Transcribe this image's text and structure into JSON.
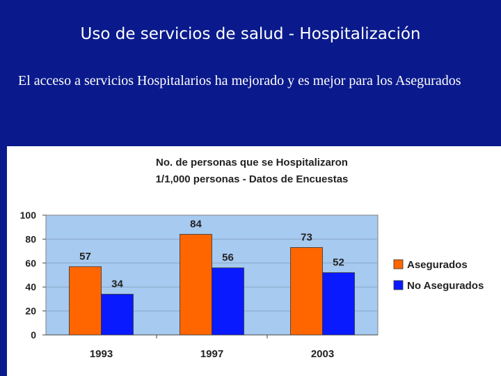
{
  "slide": {
    "title": "Uso de servicios de salud - Hospitalización",
    "body": "El acceso a servicios Hospitalarios ha mejorado y es mejor para los Asegurados"
  },
  "chart_data": {
    "type": "bar",
    "title_line1": "No. de personas que se Hospitalizaron",
    "title_line2": "1/1,000 personas - Datos de Encuestas",
    "categories": [
      "1993",
      "1997",
      "2003"
    ],
    "series": [
      {
        "name": "Asegurados",
        "values": [
          57,
          84,
          73
        ],
        "color": "#ff6600"
      },
      {
        "name": "No Asegurados",
        "values": [
          34,
          56,
          52
        ],
        "color": "#0a1aff"
      }
    ],
    "ylim": [
      0,
      100
    ],
    "yticks": [
      0,
      20,
      40,
      60,
      80,
      100
    ],
    "plot_background": "#a6caf0",
    "legend_position": "right"
  }
}
